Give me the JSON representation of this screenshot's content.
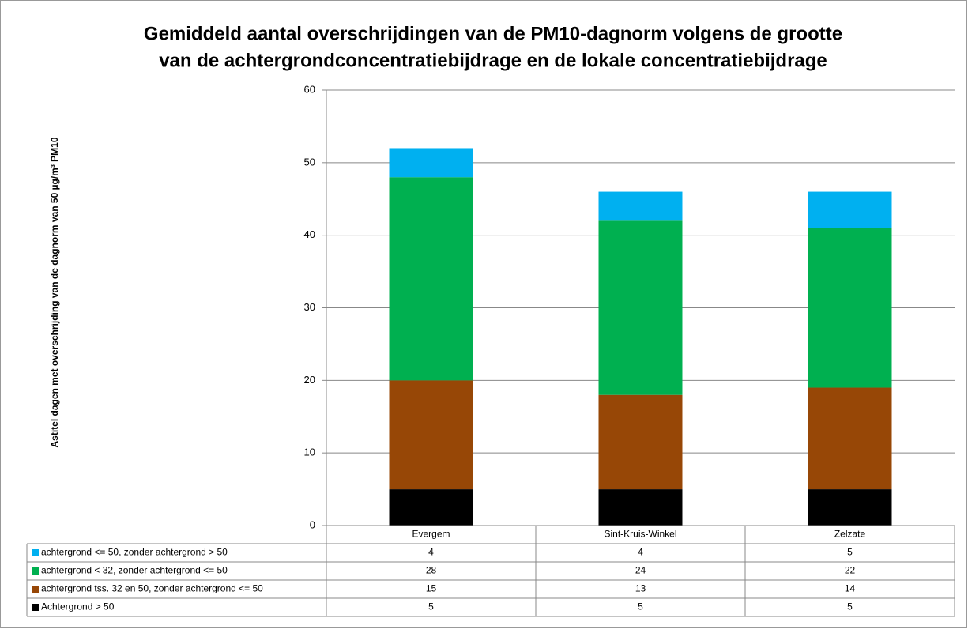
{
  "chart_data": {
    "type": "bar",
    "stacked": true,
    "title": [
      "Gemiddeld aantal overschrijdingen van de PM10-dagnorm volgens de grootte",
      "van de achtergrondconcentratiebijdrage en de lokale concentratiebijdrage"
    ],
    "y_label": "Astitel  dagen met overschrijding van de dagnorm van 50 µg/m³ PM10",
    "categories": [
      "Evergem",
      "Sint-Kruis-Winkel",
      "Zelzate"
    ],
    "series": [
      {
        "name": "Achtergrond > 50",
        "color": "#000000",
        "values": [
          5,
          5,
          5
        ]
      },
      {
        "name": "achtergrond tss. 32 en 50, zonder achtergrond <= 50",
        "color": "#974706",
        "values": [
          15,
          13,
          14
        ]
      },
      {
        "name": "achtergrond < 32, zonder achtergrond <= 50",
        "color": "#00b050",
        "values": [
          28,
          24,
          22
        ]
      },
      {
        "name": "achtergrond <= 50, zonder achtergrond > 50",
        "color": "#00b0f0",
        "values": [
          4,
          4,
          5
        ]
      }
    ],
    "ylim": [
      0,
      60
    ],
    "yticks": [
      0,
      10,
      20,
      30,
      40,
      50,
      60
    ],
    "grid": true,
    "data_table": true
  }
}
